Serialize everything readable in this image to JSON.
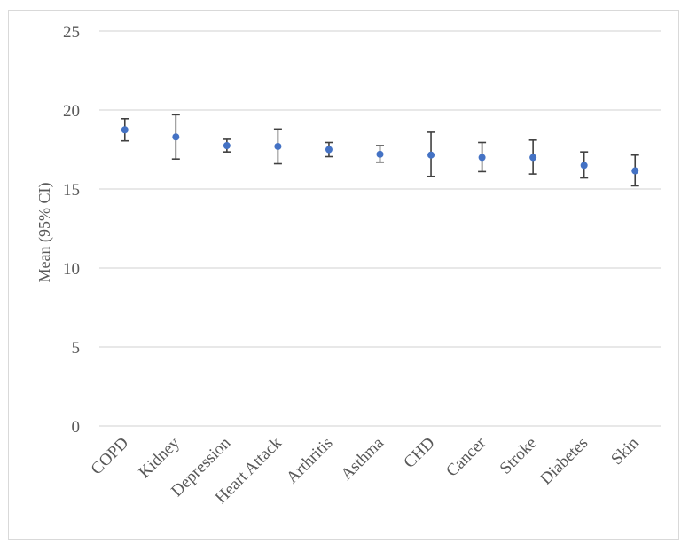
{
  "chart_data": {
    "type": "scatter",
    "title": "",
    "xlabel": "",
    "ylabel": "Mean (95% CI)",
    "ylim": [
      0,
      25
    ],
    "yticks": [
      0,
      5,
      10,
      15,
      20,
      25
    ],
    "grid": true,
    "legend": "none",
    "categories": [
      "COPD",
      "Kidney",
      "Depression",
      "Heart Attack",
      "Arthritis",
      "Asthma",
      "CHD",
      "Cancer",
      "Stroke",
      "Diabetes",
      "Skin"
    ],
    "series": [
      {
        "values": [
          18.75,
          18.3,
          17.75,
          17.7,
          17.5,
          17.2,
          17.15,
          17.0,
          17.0,
          16.5,
          16.15
        ],
        "lower": [
          18.05,
          16.9,
          17.35,
          16.6,
          17.05,
          16.7,
          15.8,
          16.1,
          15.95,
          15.7,
          15.2
        ],
        "upper": [
          19.45,
          19.7,
          18.15,
          18.8,
          17.95,
          17.75,
          18.6,
          17.95,
          18.1,
          17.35,
          17.15
        ]
      }
    ],
    "colors": {
      "marker": "#4472c4",
      "error_bar": "#404040",
      "grid": "#d9d9d9",
      "text": "#595959"
    }
  }
}
